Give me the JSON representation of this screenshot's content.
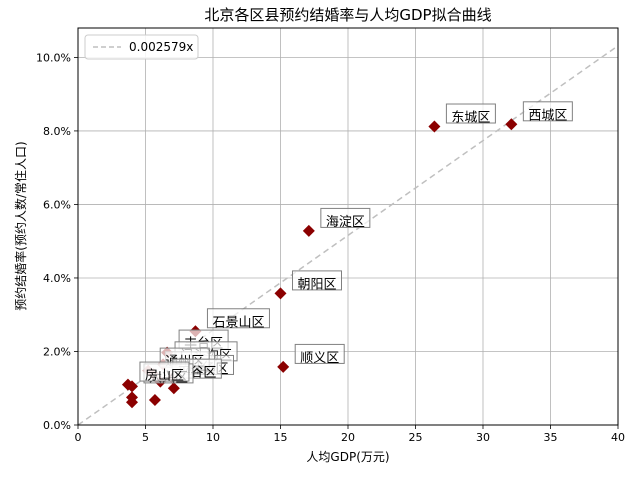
{
  "chart_data": {
    "type": "scatter",
    "title": "北京各区县预约结婚率与人均GDP拟合曲线",
    "xlabel": "人均GDP(万元)",
    "ylabel": "预约结婚率(预约人数/常住人口)",
    "xlim": [
      0,
      40
    ],
    "ylim": [
      0,
      0.108
    ],
    "xticks": [
      0,
      5,
      10,
      15,
      20,
      25,
      30,
      35,
      40
    ],
    "yticks": [
      0,
      0.02,
      0.04,
      0.06,
      0.08,
      0.1
    ],
    "ytick_labels": [
      "0.0%",
      "2.0%",
      "4.0%",
      "6.0%",
      "8.0%",
      "10.0%"
    ],
    "grid": true,
    "legend_position": "top-left",
    "fit_line": {
      "label": "0.002579x",
      "slope": 0.002579,
      "style": "dashed",
      "color": "#bfbfbf"
    },
    "marker_color": "#8b0000",
    "labeled_points": [
      {
        "label": "西城区",
        "x": 32.1,
        "y": 0.0818
      },
      {
        "label": "东城区",
        "x": 26.4,
        "y": 0.0812
      },
      {
        "label": "海淀区",
        "x": 17.1,
        "y": 0.0528
      },
      {
        "label": "朝阳区",
        "x": 15.0,
        "y": 0.0358
      },
      {
        "label": "石景山区",
        "x": 8.7,
        "y": 0.0255
      },
      {
        "label": "顺义区",
        "x": 15.2,
        "y": 0.0158
      },
      {
        "label": "丰台区",
        "x": 6.6,
        "y": 0.0197
      },
      {
        "label": "门头沟区",
        "x": 6.3,
        "y": 0.0165
      },
      {
        "label": "怀柔区",
        "x": 7.0,
        "y": 0.0128
      },
      {
        "label": "昌平区",
        "x": 5.6,
        "y": 0.0138
      },
      {
        "label": "通州区",
        "x": 5.2,
        "y": 0.0148
      },
      {
        "label": "平谷区",
        "x": 6.1,
        "y": 0.0118
      },
      {
        "label": "大兴区",
        "x": 4.0,
        "y": 0.0105
      },
      {
        "label": "房山区",
        "x": 3.7,
        "y": 0.011
      }
    ],
    "unlabeled_points": [
      {
        "x": 4.0,
        "y": 0.0075
      },
      {
        "x": 4.0,
        "y": 0.0062
      },
      {
        "x": 5.7,
        "y": 0.0068
      },
      {
        "x": 7.1,
        "y": 0.01
      }
    ]
  }
}
